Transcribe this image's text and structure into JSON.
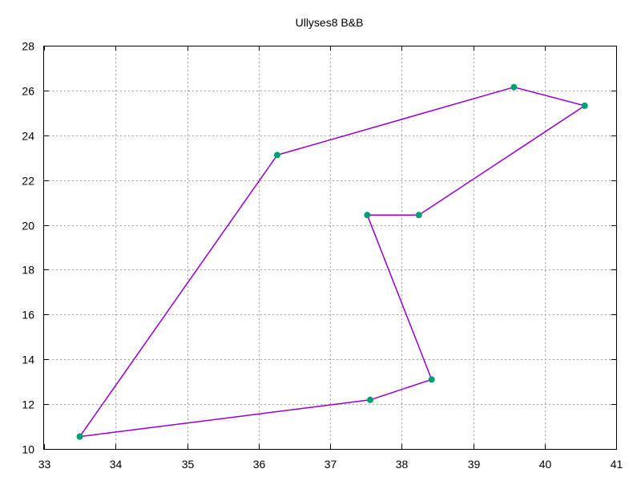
{
  "chart_data": {
    "type": "line",
    "title": "Ullyses8 B&B",
    "xlabel": "",
    "ylabel": "",
    "xlim": [
      33,
      41
    ],
    "ylim": [
      10,
      28
    ],
    "xticks": [
      33,
      34,
      35,
      36,
      37,
      38,
      39,
      40,
      41
    ],
    "yticks": [
      10,
      12,
      14,
      16,
      18,
      20,
      22,
      24,
      26,
      28
    ],
    "grid": true,
    "line_color": "#9400d3",
    "marker_color": "#009e73",
    "series": [
      {
        "points": [
          {
            "x": 33.5,
            "y": 10.55
          },
          {
            "x": 36.26,
            "y": 23.12
          },
          {
            "x": 39.57,
            "y": 26.15
          },
          {
            "x": 40.56,
            "y": 25.32
          },
          {
            "x": 38.24,
            "y": 20.44
          },
          {
            "x": 37.52,
            "y": 20.44
          },
          {
            "x": 38.42,
            "y": 13.1
          },
          {
            "x": 37.56,
            "y": 12.19
          },
          {
            "x": 33.5,
            "y": 10.55
          }
        ]
      }
    ]
  }
}
